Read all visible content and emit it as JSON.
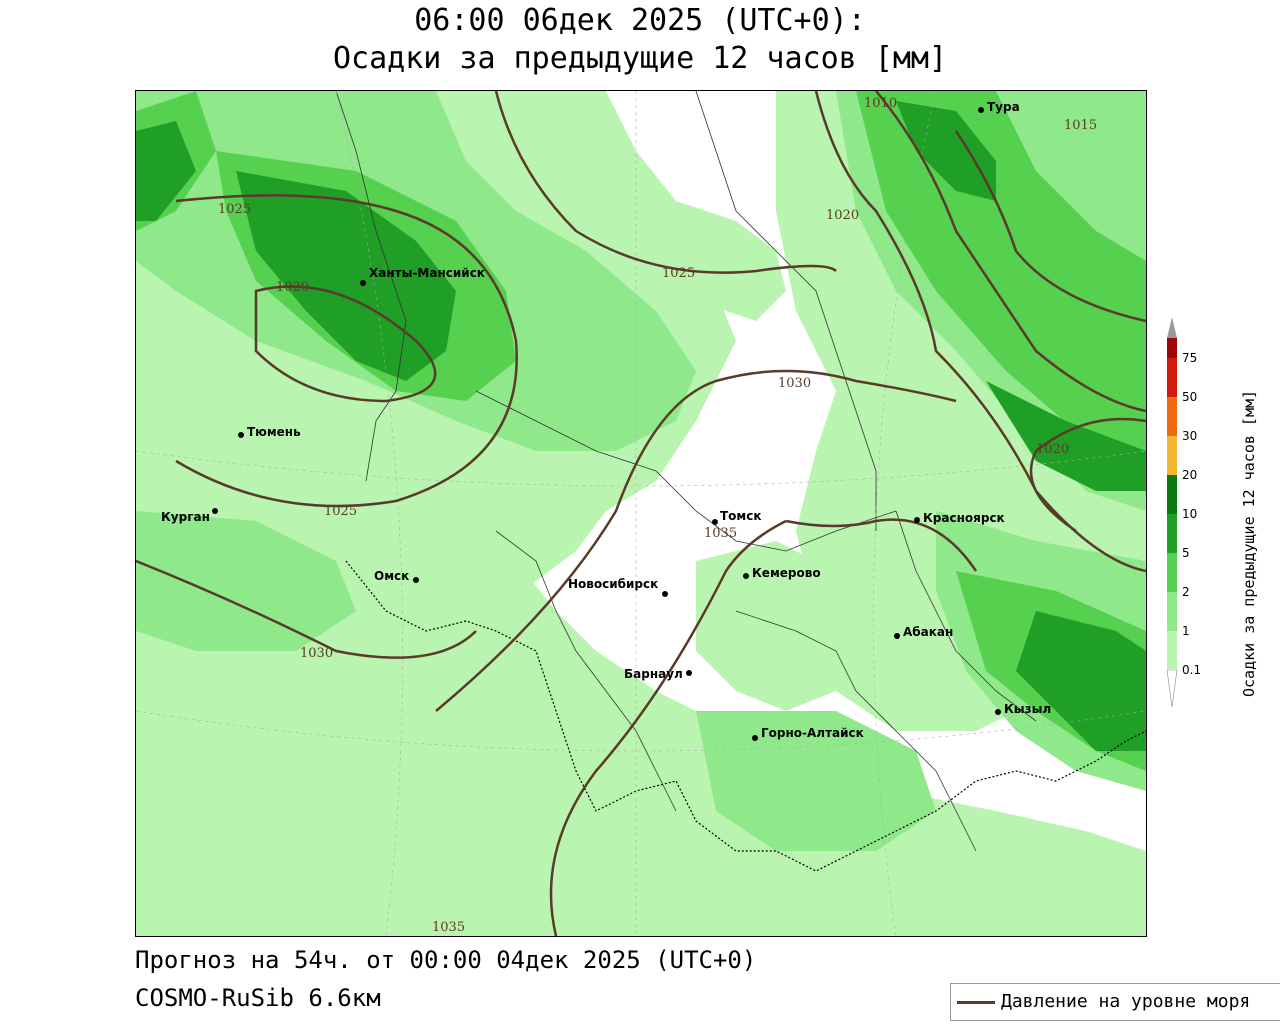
{
  "title": {
    "line1": "06:00 06дек 2025 (UTC+0):",
    "line2": "Осадки за предыдущие 12 часов [мм]"
  },
  "footer": {
    "forecast": "Прогноз на 54ч. от 00:00 04дек 2025 (UTC+0)",
    "model": "COSMO-RuSib 6.6км"
  },
  "legend": {
    "pressure_label": "Давление на уровне моря",
    "pressure_color": "#5a3a2a"
  },
  "colorbar": {
    "title": "Осадки за предыдущие 12 часов [мм]",
    "ticks": [
      "0.1",
      "1",
      "2",
      "5",
      "10",
      "20",
      "30",
      "50",
      "75"
    ],
    "colors": [
      "#b9f5b0",
      "#8fe88a",
      "#55d14f",
      "#1f9f25",
      "#0a7a12",
      "#f2b632",
      "#f06a12",
      "#d11b0c",
      "#a00808",
      "#9a9a9a"
    ]
  },
  "cities": [
    {
      "name": "Тура"
    },
    {
      "name": "Ханты-Мансийск"
    },
    {
      "name": "Тюмень"
    },
    {
      "name": "Курган"
    },
    {
      "name": "Омск"
    },
    {
      "name": "Новосибирск"
    },
    {
      "name": "Томск"
    },
    {
      "name": "Кемерово"
    },
    {
      "name": "Красноярск"
    },
    {
      "name": "Абакан"
    },
    {
      "name": "Барнаул"
    },
    {
      "name": "Горно-Алтайск"
    },
    {
      "name": "Кызыл"
    }
  ],
  "isobars": [
    "1010",
    "1015",
    "1020",
    "1025",
    "1025",
    "1020",
    "1030",
    "1025",
    "1035",
    "1030",
    "1020",
    "1035"
  ]
}
